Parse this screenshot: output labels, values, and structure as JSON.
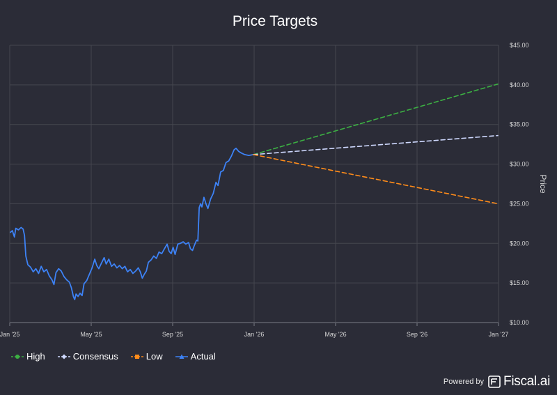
{
  "chart_data": {
    "type": "line",
    "title": "Price Targets",
    "ylabel": "Price",
    "xlabel": "",
    "ylim": [
      10,
      45
    ],
    "y_ticks": [
      "$10.00",
      "$15.00",
      "$20.00",
      "$25.00",
      "$30.00",
      "$35.00",
      "$40.00",
      "$45.00"
    ],
    "y_tick_values": [
      10,
      15,
      20,
      25,
      30,
      35,
      40,
      45
    ],
    "x_ticks": [
      "Jan '25",
      "May '25",
      "Sep '25",
      "Jan '26",
      "May '26",
      "Sep '26",
      "Jan '27"
    ],
    "x_range": [
      "2025-01-01",
      "2027-01-01"
    ],
    "grid": true,
    "legend_position": "bottom-left",
    "series": [
      {
        "name": "High",
        "color": "#3cb043",
        "style": "dashed",
        "points": [
          [
            "2025-12-31",
            31.2
          ],
          [
            "2026-12-31",
            40.1
          ]
        ]
      },
      {
        "name": "Consensus",
        "color": "#cfd9ff",
        "style": "dashed",
        "points": [
          [
            "2025-12-31",
            31.2
          ],
          [
            "2026-12-31",
            33.6
          ]
        ]
      },
      {
        "name": "Low",
        "color": "#ff8c1a",
        "style": "dashed",
        "points": [
          [
            "2025-12-31",
            31.2
          ],
          [
            "2026-12-31",
            25.0
          ]
        ]
      },
      {
        "name": "Actual",
        "color": "#3d82f5",
        "style": "solid",
        "points": [
          [
            "2025-01-02",
            21.4
          ],
          [
            "2025-01-05",
            21.6
          ],
          [
            "2025-01-08",
            20.8
          ],
          [
            "2025-01-10",
            21.9
          ],
          [
            "2025-01-14",
            21.7
          ],
          [
            "2025-01-18",
            22.0
          ],
          [
            "2025-01-21",
            21.8
          ],
          [
            "2025-01-23",
            21.0
          ],
          [
            "2025-01-25",
            18.4
          ],
          [
            "2025-01-28",
            17.3
          ],
          [
            "2025-02-01",
            17.0
          ],
          [
            "2025-02-05",
            16.4
          ],
          [
            "2025-02-09",
            16.8
          ],
          [
            "2025-02-13",
            16.2
          ],
          [
            "2025-02-17",
            17.1
          ],
          [
            "2025-02-21",
            16.4
          ],
          [
            "2025-02-25",
            16.7
          ],
          [
            "2025-03-01",
            15.9
          ],
          [
            "2025-03-05",
            15.4
          ],
          [
            "2025-03-08",
            14.8
          ],
          [
            "2025-03-11",
            16.3
          ],
          [
            "2025-03-15",
            16.8
          ],
          [
            "2025-03-19",
            16.5
          ],
          [
            "2025-03-23",
            15.8
          ],
          [
            "2025-03-27",
            15.4
          ],
          [
            "2025-03-31",
            15.1
          ],
          [
            "2025-04-03",
            14.4
          ],
          [
            "2025-04-06",
            13.3
          ],
          [
            "2025-04-08",
            12.9
          ],
          [
            "2025-04-10",
            13.6
          ],
          [
            "2025-04-13",
            13.3
          ],
          [
            "2025-04-16",
            13.7
          ],
          [
            "2025-04-19",
            13.4
          ],
          [
            "2025-04-22",
            14.9
          ],
          [
            "2025-04-26",
            15.3
          ],
          [
            "2025-04-30",
            16.1
          ],
          [
            "2025-05-04",
            16.9
          ],
          [
            "2025-05-08",
            18.0
          ],
          [
            "2025-05-11",
            17.2
          ],
          [
            "2025-05-14",
            16.8
          ],
          [
            "2025-05-18",
            17.5
          ],
          [
            "2025-05-22",
            18.2
          ],
          [
            "2025-05-25",
            17.4
          ],
          [
            "2025-05-29",
            18.0
          ],
          [
            "2025-06-02",
            17.1
          ],
          [
            "2025-06-06",
            17.4
          ],
          [
            "2025-06-10",
            16.9
          ],
          [
            "2025-06-14",
            17.2
          ],
          [
            "2025-06-18",
            16.8
          ],
          [
            "2025-06-22",
            17.1
          ],
          [
            "2025-06-26",
            16.4
          ],
          [
            "2025-06-30",
            16.7
          ],
          [
            "2025-07-04",
            16.2
          ],
          [
            "2025-07-08",
            16.5
          ],
          [
            "2025-07-12",
            16.9
          ],
          [
            "2025-07-15",
            16.4
          ],
          [
            "2025-07-18",
            15.6
          ],
          [
            "2025-07-21",
            16.1
          ],
          [
            "2025-07-24",
            16.5
          ],
          [
            "2025-07-27",
            17.6
          ],
          [
            "2025-07-31",
            17.9
          ],
          [
            "2025-08-04",
            18.4
          ],
          [
            "2025-08-08",
            18.1
          ],
          [
            "2025-08-12",
            18.9
          ],
          [
            "2025-08-16",
            18.7
          ],
          [
            "2025-08-20",
            19.3
          ],
          [
            "2025-08-24",
            19.9
          ],
          [
            "2025-08-27",
            19.0
          ],
          [
            "2025-08-30",
            18.7
          ],
          [
            "2025-09-02",
            19.5
          ],
          [
            "2025-09-05",
            18.6
          ],
          [
            "2025-09-09",
            19.9
          ],
          [
            "2025-09-13",
            20.0
          ],
          [
            "2025-09-17",
            20.2
          ],
          [
            "2025-09-21",
            19.9
          ],
          [
            "2025-09-25",
            20.1
          ],
          [
            "2025-09-28",
            19.3
          ],
          [
            "2025-10-01",
            19.1
          ],
          [
            "2025-10-04",
            19.8
          ],
          [
            "2025-10-07",
            20.4
          ],
          [
            "2025-10-09",
            20.3
          ],
          [
            "2025-10-11",
            24.5
          ],
          [
            "2025-10-13",
            25.0
          ],
          [
            "2025-10-15",
            24.6
          ],
          [
            "2025-10-18",
            25.8
          ],
          [
            "2025-10-21",
            25.0
          ],
          [
            "2025-10-24",
            24.4
          ],
          [
            "2025-10-28",
            25.6
          ],
          [
            "2025-11-01",
            26.3
          ],
          [
            "2025-11-05",
            27.7
          ],
          [
            "2025-11-08",
            27.3
          ],
          [
            "2025-11-12",
            29.0
          ],
          [
            "2025-11-16",
            29.2
          ],
          [
            "2025-11-20",
            30.2
          ],
          [
            "2025-11-24",
            30.4
          ],
          [
            "2025-11-28",
            31.0
          ],
          [
            "2025-12-02",
            31.8
          ],
          [
            "2025-12-05",
            32.0
          ],
          [
            "2025-12-09",
            31.6
          ],
          [
            "2025-12-13",
            31.4
          ],
          [
            "2025-12-18",
            31.2
          ],
          [
            "2025-12-24",
            31.1
          ],
          [
            "2025-12-31",
            31.2
          ]
        ]
      }
    ]
  },
  "footer": {
    "powered_by": "Powered by",
    "brand": "Fiscal.ai"
  }
}
